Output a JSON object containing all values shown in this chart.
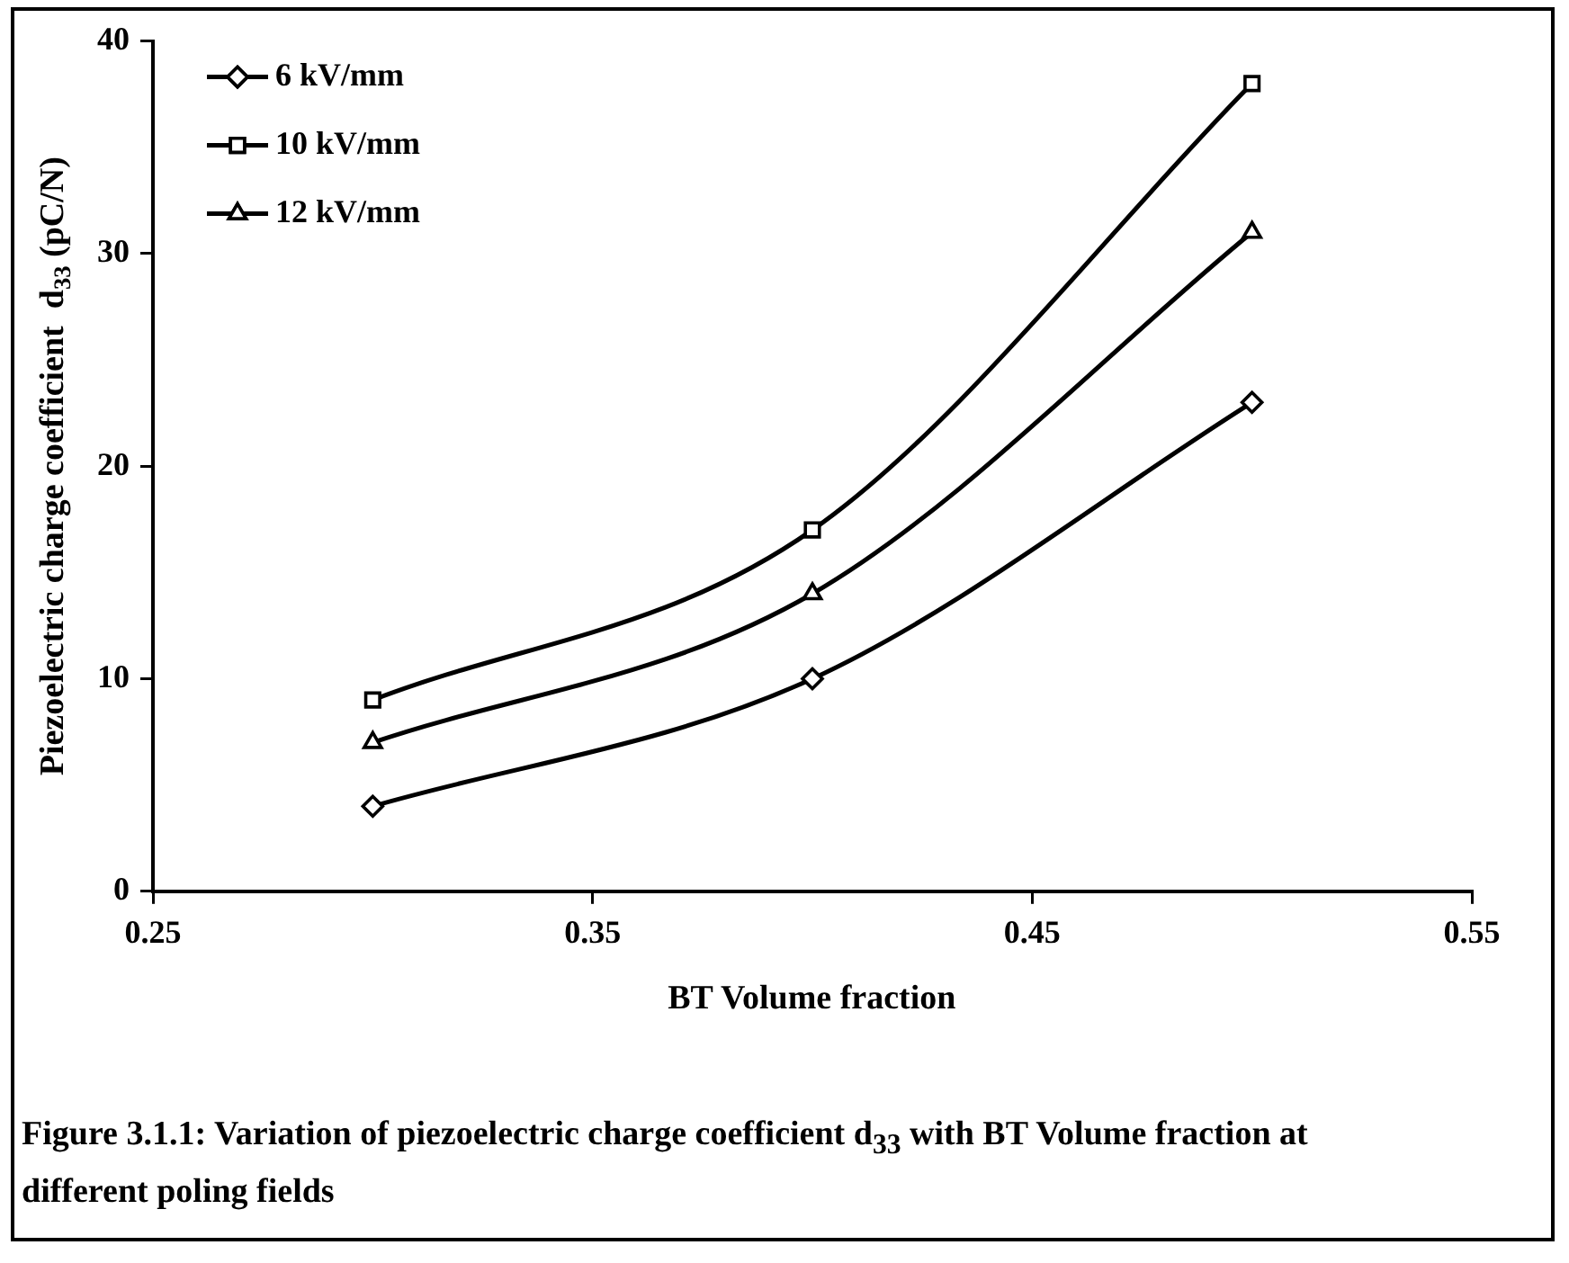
{
  "chart_data": {
    "type": "line",
    "xlabel": "BT Volume fraction",
    "ylabel": "Piezoelectric charge coefficient  d$_{33}$ (pC/N)",
    "x": [
      0.3,
      0.4,
      0.5
    ],
    "series": [
      {
        "name": "6 kV/mm",
        "color": "#000000",
        "marker": "diamond",
        "values": [
          4,
          10,
          23
        ]
      },
      {
        "name": "10 kV/mm",
        "color": "#000000",
        "marker": "square",
        "values": [
          9,
          17,
          38
        ]
      },
      {
        "name": "12 kV/mm",
        "color": "#000000",
        "marker": "triangle",
        "values": [
          7,
          14,
          31
        ]
      }
    ],
    "xlim": [
      0.25,
      0.55
    ],
    "xticks": [
      0.25,
      0.35,
      0.45,
      0.55
    ],
    "ylim": [
      0,
      40
    ],
    "yticks": [
      0,
      10,
      20,
      30,
      40
    ],
    "grid": false,
    "legend": "top left",
    "line_style": "solid",
    "annotations": [
      "Figure 3.1.1: Variation of piezoelectric charge coefficient d$_{33}$ with BT Volume fraction at different poling fields"
    ]
  }
}
